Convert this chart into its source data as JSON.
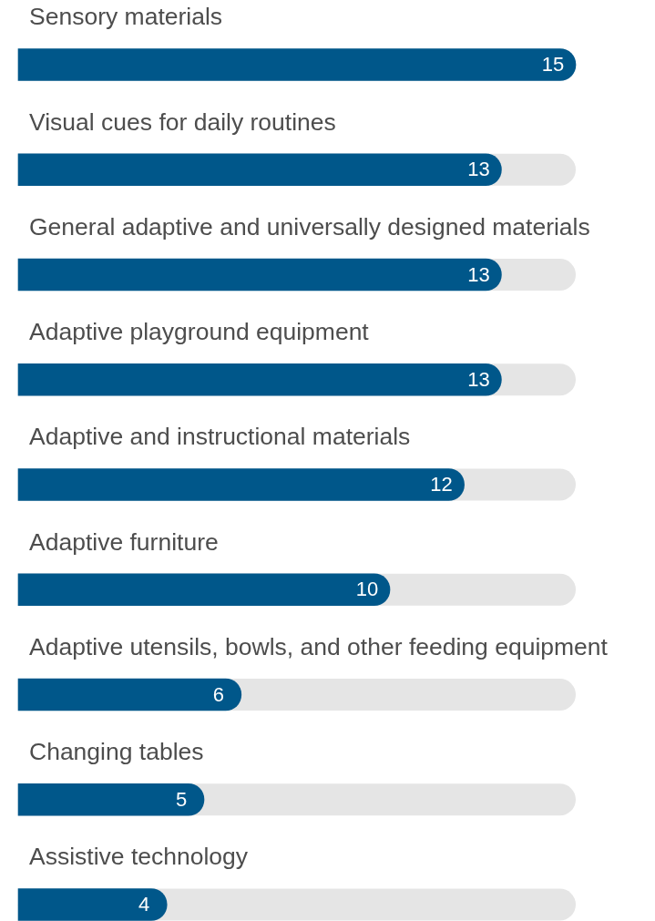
{
  "chart_data": {
    "type": "bar",
    "orientation": "horizontal",
    "categories": [
      "Sensory materials",
      "Visual cues for daily routines",
      "General adaptive and universally designed materials",
      "Adaptive playground equipment",
      "Adaptive and instructional materials",
      "Adaptive furniture",
      "Adaptive utensils, bowls, and other feeding equipment",
      "Changing tables",
      "Assistive technology"
    ],
    "values": [
      15,
      13,
      13,
      13,
      12,
      10,
      6,
      5,
      4
    ],
    "color": "#00578a",
    "xlim": [
      0,
      15
    ],
    "data_labels": true
  }
}
